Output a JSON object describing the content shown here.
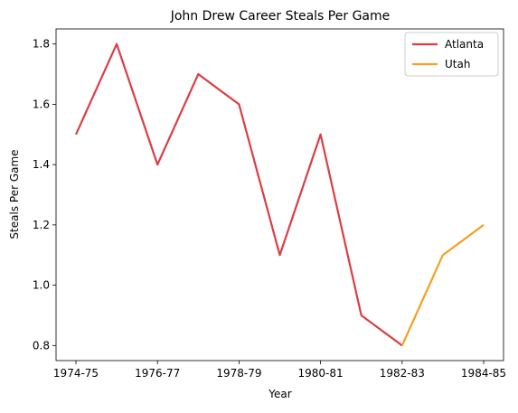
{
  "chart_data": {
    "type": "line",
    "title": "John Drew  Career Steals Per Game",
    "xlabel": "Year",
    "ylabel": "Steals Per Game",
    "x": [
      "1974-75",
      "1975-76",
      "1976-77",
      "1977-78",
      "1978-79",
      "1979-80",
      "1980-81",
      "1981-82",
      "1982-83",
      "1983-84",
      "1984-85"
    ],
    "xticks": [
      "1974-75",
      "1976-77",
      "1978-79",
      "1980-81",
      "1982-83",
      "1984-85"
    ],
    "yticks": [
      "0.8",
      "1.0",
      "1.2",
      "1.4",
      "1.6",
      "1.8"
    ],
    "ylim": [
      0.75,
      1.85
    ],
    "grid": false,
    "legend_position": "top-right",
    "series": [
      {
        "name": "Atlanta",
        "color": "#dc3d43",
        "x": [
          "1974-75",
          "1975-76",
          "1976-77",
          "1977-78",
          "1978-79",
          "1979-80",
          "1980-81",
          "1981-82",
          "1982-83"
        ],
        "values": [
          1.5,
          1.8,
          1.4,
          1.7,
          1.6,
          1.1,
          1.5,
          0.9,
          0.8
        ]
      },
      {
        "name": "Utah",
        "color": "#f4a020",
        "x": [
          "1982-83",
          "1983-84",
          "1984-85"
        ],
        "values": [
          0.8,
          1.1,
          1.2
        ]
      }
    ]
  }
}
